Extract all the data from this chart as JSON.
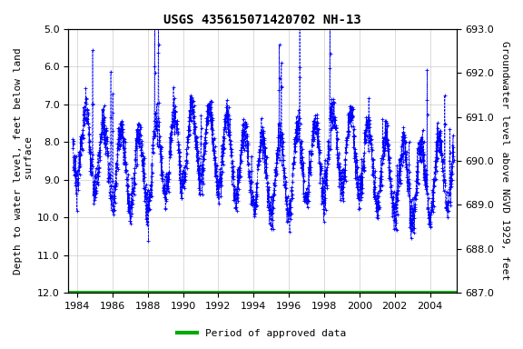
{
  "title": "USGS 435615071420702 NH-13",
  "ylabel_left": "Depth to water level, feet below land\n surface",
  "ylabel_right": "Groundwater level above NGVD 1929, feet",
  "ylim_left": [
    5.0,
    12.0
  ],
  "ylim_right": [
    693.0,
    687.0
  ],
  "xlim": [
    1983.5,
    2005.5
  ],
  "yticks_left": [
    5.0,
    6.0,
    7.0,
    8.0,
    9.0,
    10.0,
    11.0,
    12.0
  ],
  "yticks_right": [
    693.0,
    692.0,
    691.0,
    690.0,
    689.0,
    688.0,
    687.0
  ],
  "xticks": [
    1984,
    1986,
    1988,
    1990,
    1992,
    1994,
    1996,
    1998,
    2000,
    2002,
    2004
  ],
  "data_color": "#0000FF",
  "approved_color": "#00AA00",
  "approved_y": 12.0,
  "background_color": "#FFFFFF",
  "grid_color": "#CCCCCC",
  "title_fontsize": 10,
  "label_fontsize": 8,
  "tick_fontsize": 8,
  "legend_label": "Period of approved data",
  "seed": 12345
}
